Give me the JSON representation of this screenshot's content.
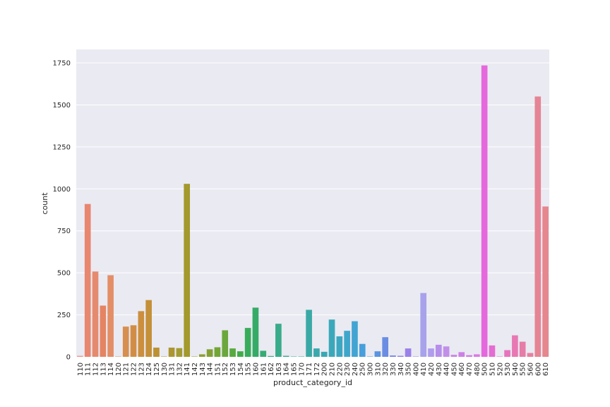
{
  "chart_data": {
    "type": "bar",
    "title": "",
    "xlabel": "product_category_id",
    "ylabel": "count",
    "ylim": [
      0,
      1830
    ],
    "yticks": [
      0,
      250,
      500,
      750,
      1000,
      1250,
      1500,
      1750
    ],
    "grid": true,
    "categories": [
      "110",
      "111",
      "112",
      "113",
      "114",
      "120",
      "121",
      "122",
      "123",
      "124",
      "125",
      "130",
      "131",
      "132",
      "141",
      "142",
      "143",
      "144",
      "151",
      "152",
      "153",
      "154",
      "155",
      "160",
      "161",
      "162",
      "163",
      "164",
      "165",
      "170",
      "171",
      "172",
      "200",
      "210",
      "220",
      "230",
      "240",
      "250",
      "300",
      "310",
      "320",
      "330",
      "340",
      "350",
      "400",
      "410",
      "420",
      "430",
      "440",
      "450",
      "460",
      "470",
      "480",
      "500",
      "510",
      "520",
      "530",
      "540",
      "550",
      "560",
      "600",
      "610"
    ],
    "values": [
      6,
      910,
      508,
      305,
      486,
      2,
      180,
      188,
      272,
      338,
      55,
      2,
      55,
      52,
      1030,
      2,
      15,
      45,
      57,
      158,
      50,
      33,
      172,
      293,
      36,
      5,
      197,
      6,
      2,
      2,
      280,
      50,
      30,
      222,
      122,
      155,
      212,
      77,
      2,
      33,
      117,
      8,
      6,
      50,
      2,
      380,
      50,
      72,
      62,
      12,
      28,
      10,
      15,
      1735,
      68,
      2,
      40,
      128,
      90,
      23,
      1550,
      895
    ],
    "colors": [
      "#e8998a",
      "#e8866f",
      "#e58a6f",
      "#e48463",
      "#e38e67",
      "#dd8f52",
      "#d68f4f",
      "#d28d45",
      "#cb8f3d",
      "#c49038",
      "#bb9132",
      "#b49235",
      "#ad9632",
      "#a39c34",
      "#a3992c",
      "#9a9c30",
      "#8f9f33",
      "#83a133",
      "#72a635",
      "#6aa73c",
      "#58aa3e",
      "#3fad46",
      "#38ac5a",
      "#35ab67",
      "#37ab72",
      "#38ab7f",
      "#38ab8a",
      "#38aa92",
      "#38aa98",
      "#39a99f",
      "#39a9a5",
      "#3aa9ac",
      "#3aa8b2",
      "#3ba8ba",
      "#3ca7c1",
      "#3fa6cb",
      "#42a4d3",
      "#479fdc",
      "#4e9ae0",
      "#5b94e0",
      "#6a8de3",
      "#7b88e5",
      "#8d82e9",
      "#9b80e9",
      "#a47ee9",
      "#a8a2ea",
      "#b09ded",
      "#b68feb",
      "#c18fe8",
      "#c886e6",
      "#cc80e5",
      "#d27be4",
      "#da7ae3",
      "#e569dc",
      "#e56cd2",
      "#e66fc8",
      "#e773bd",
      "#e778b3",
      "#e67ca8",
      "#e6819f",
      "#e58495",
      "#e5878d"
    ]
  }
}
